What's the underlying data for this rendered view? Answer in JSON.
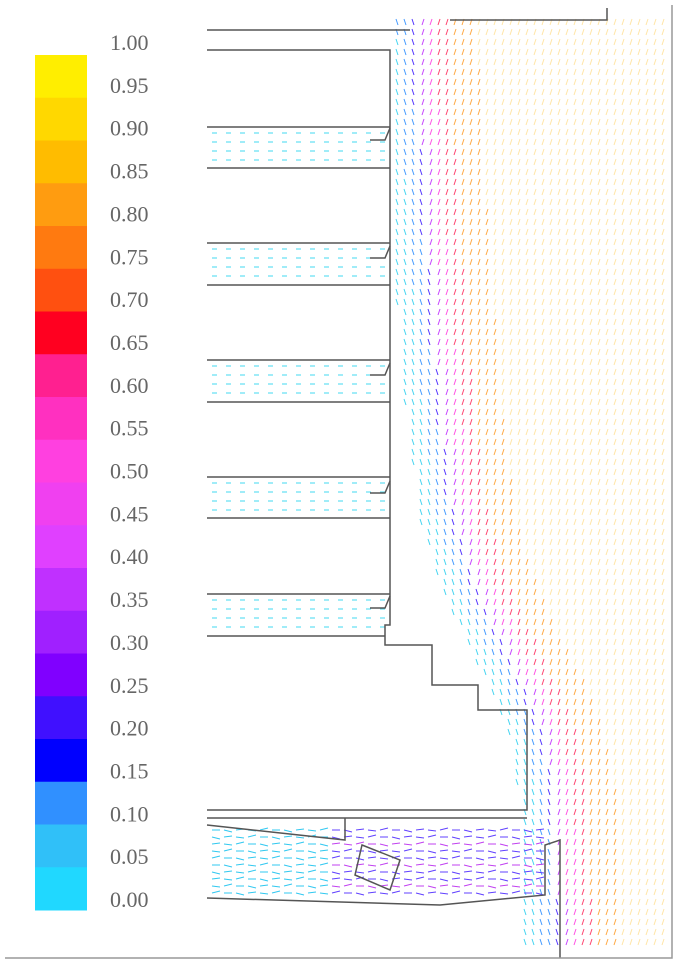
{
  "colorbar": {
    "labels": [
      "1.00",
      "0.95",
      "0.90",
      "0.85",
      "0.80",
      "0.75",
      "0.70",
      "0.65",
      "0.60",
      "0.55",
      "0.50",
      "0.45",
      "0.40",
      "0.35",
      "0.30",
      "0.25",
      "0.20",
      "0.15",
      "0.10",
      "0.05",
      "0.00"
    ]
  }
}
